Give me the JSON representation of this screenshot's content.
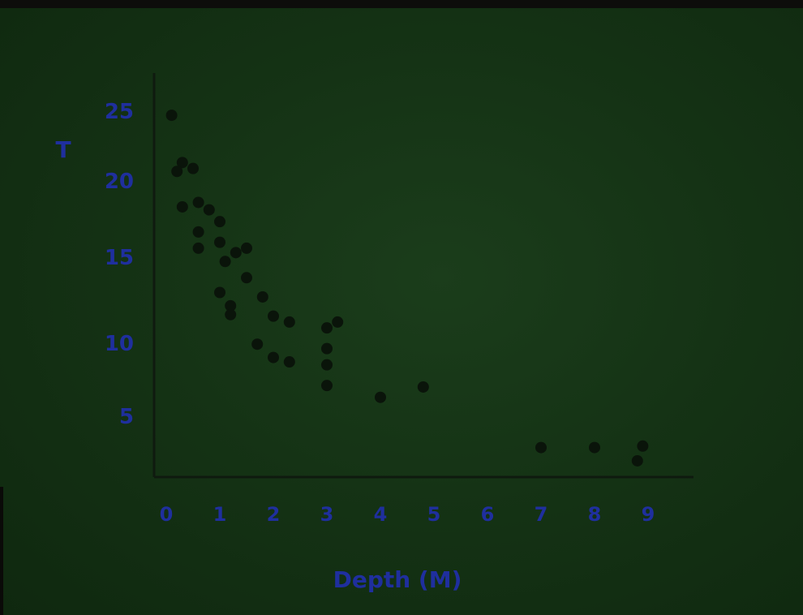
{
  "chart_data": {
    "type": "scatter",
    "title": "",
    "xlabel": "Depth (M)",
    "ylabel": "T",
    "x_ticks": [
      "0",
      "1",
      "2",
      "3",
      "4",
      "5",
      "6",
      "7",
      "8",
      "9"
    ],
    "y_ticks": [
      "25",
      "20",
      "15",
      "10",
      "5"
    ],
    "xlim": [
      0,
      9.5
    ],
    "ylim": [
      0,
      27
    ],
    "grid": false,
    "series": [
      {
        "points": [
          [
            0.1,
            24.5
          ],
          [
            0.3,
            21.3
          ],
          [
            0.2,
            20.7
          ],
          [
            0.5,
            20.9
          ],
          [
            0.3,
            18.3
          ],
          [
            0.6,
            18.6
          ],
          [
            0.8,
            18.1
          ],
          [
            0.6,
            16.6
          ],
          [
            1.0,
            17.3
          ],
          [
            0.6,
            15.5
          ],
          [
            1.0,
            15.9
          ],
          [
            1.3,
            15.2
          ],
          [
            1.1,
            14.6
          ],
          [
            1.5,
            15.5
          ],
          [
            1.5,
            13.5
          ],
          [
            1.8,
            12.2
          ],
          [
            1.0,
            12.5
          ],
          [
            1.2,
            11.6
          ],
          [
            1.2,
            11.0
          ],
          [
            2.0,
            10.9
          ],
          [
            2.3,
            10.5
          ],
          [
            1.7,
            9.0
          ],
          [
            2.0,
            8.1
          ],
          [
            2.3,
            7.8
          ],
          [
            3.0,
            10.1
          ],
          [
            3.2,
            10.5
          ],
          [
            3.0,
            8.7
          ],
          [
            3.0,
            7.6
          ],
          [
            3.0,
            6.2
          ],
          [
            4.0,
            5.4
          ],
          [
            4.8,
            6.1
          ],
          [
            7.0,
            2.0
          ],
          [
            8.0,
            2.0
          ],
          [
            8.8,
            1.1
          ],
          [
            8.9,
            2.1
          ]
        ]
      }
    ]
  }
}
